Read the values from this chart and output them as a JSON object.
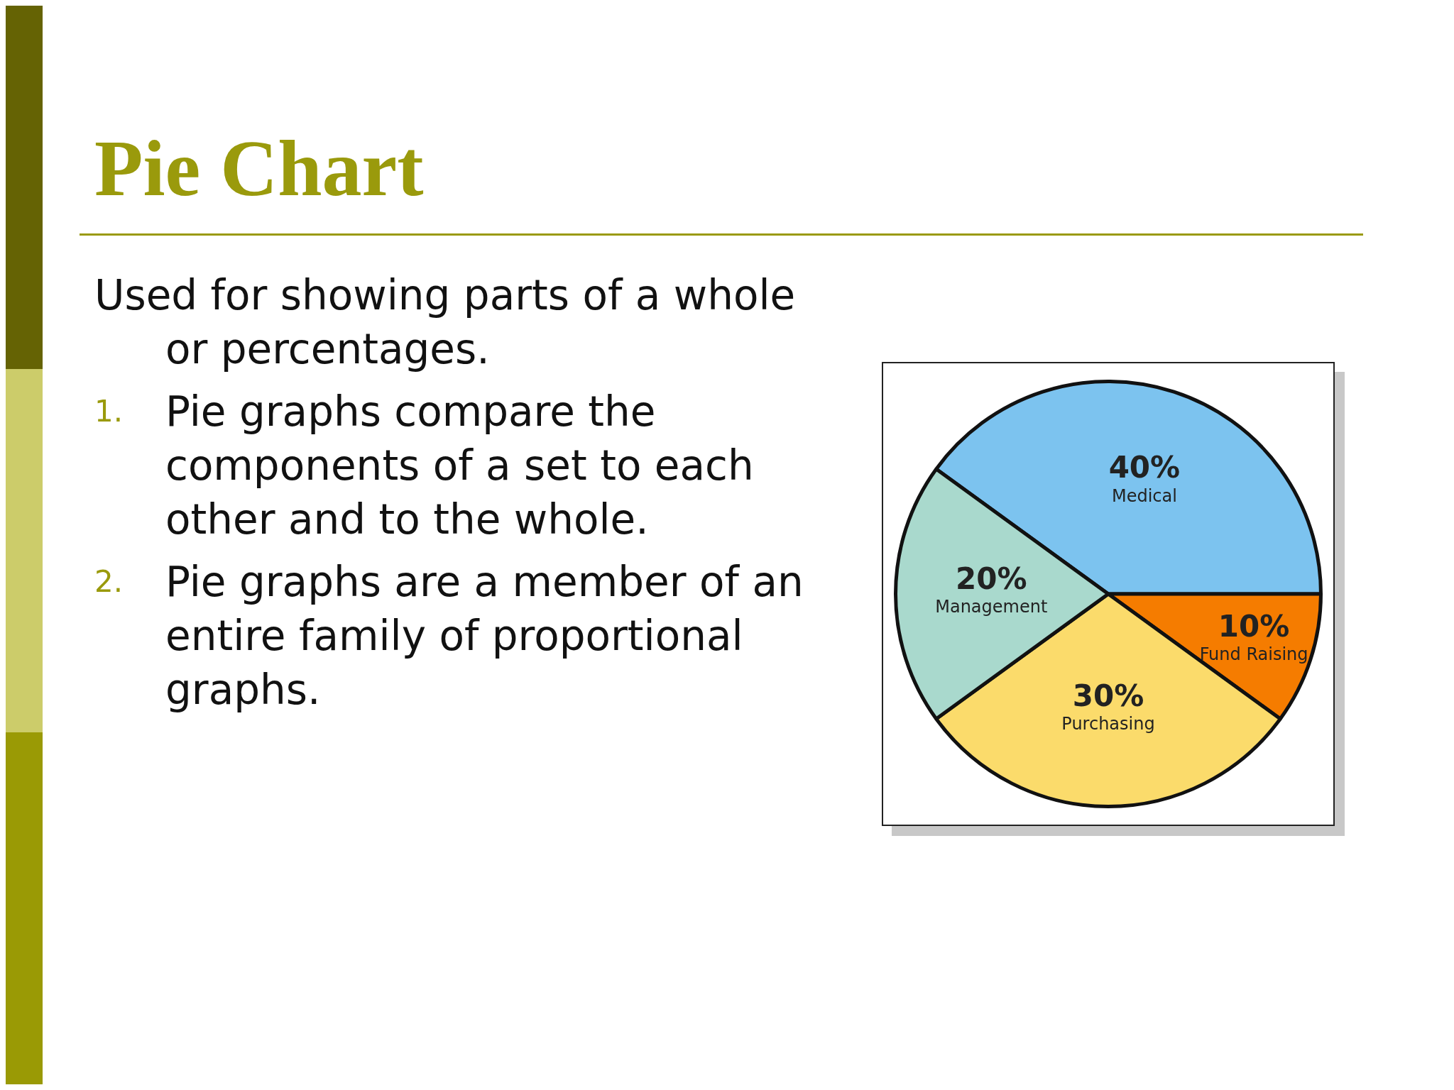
{
  "chart_data": {
    "type": "pie",
    "title": "Pie Chart",
    "categories": [
      "Medical",
      "Fund Raising",
      "Purchasing",
      "Management"
    ],
    "values": [
      40,
      10,
      30,
      20
    ],
    "colors": [
      "#7cc3ef",
      "#f57c00",
      "#fbdb6b",
      "#a9d9cd"
    ],
    "value_labels": [
      "40%",
      "10%",
      "30%",
      "20%"
    ],
    "legend": false,
    "annotations": [
      "Used for showing parts of a whole or percentages.",
      "1. Pie graphs compare the components of a set to each other and to the whole.",
      "2. Pie graphs are a member of an entire family of proportional graphs."
    ]
  }
}
